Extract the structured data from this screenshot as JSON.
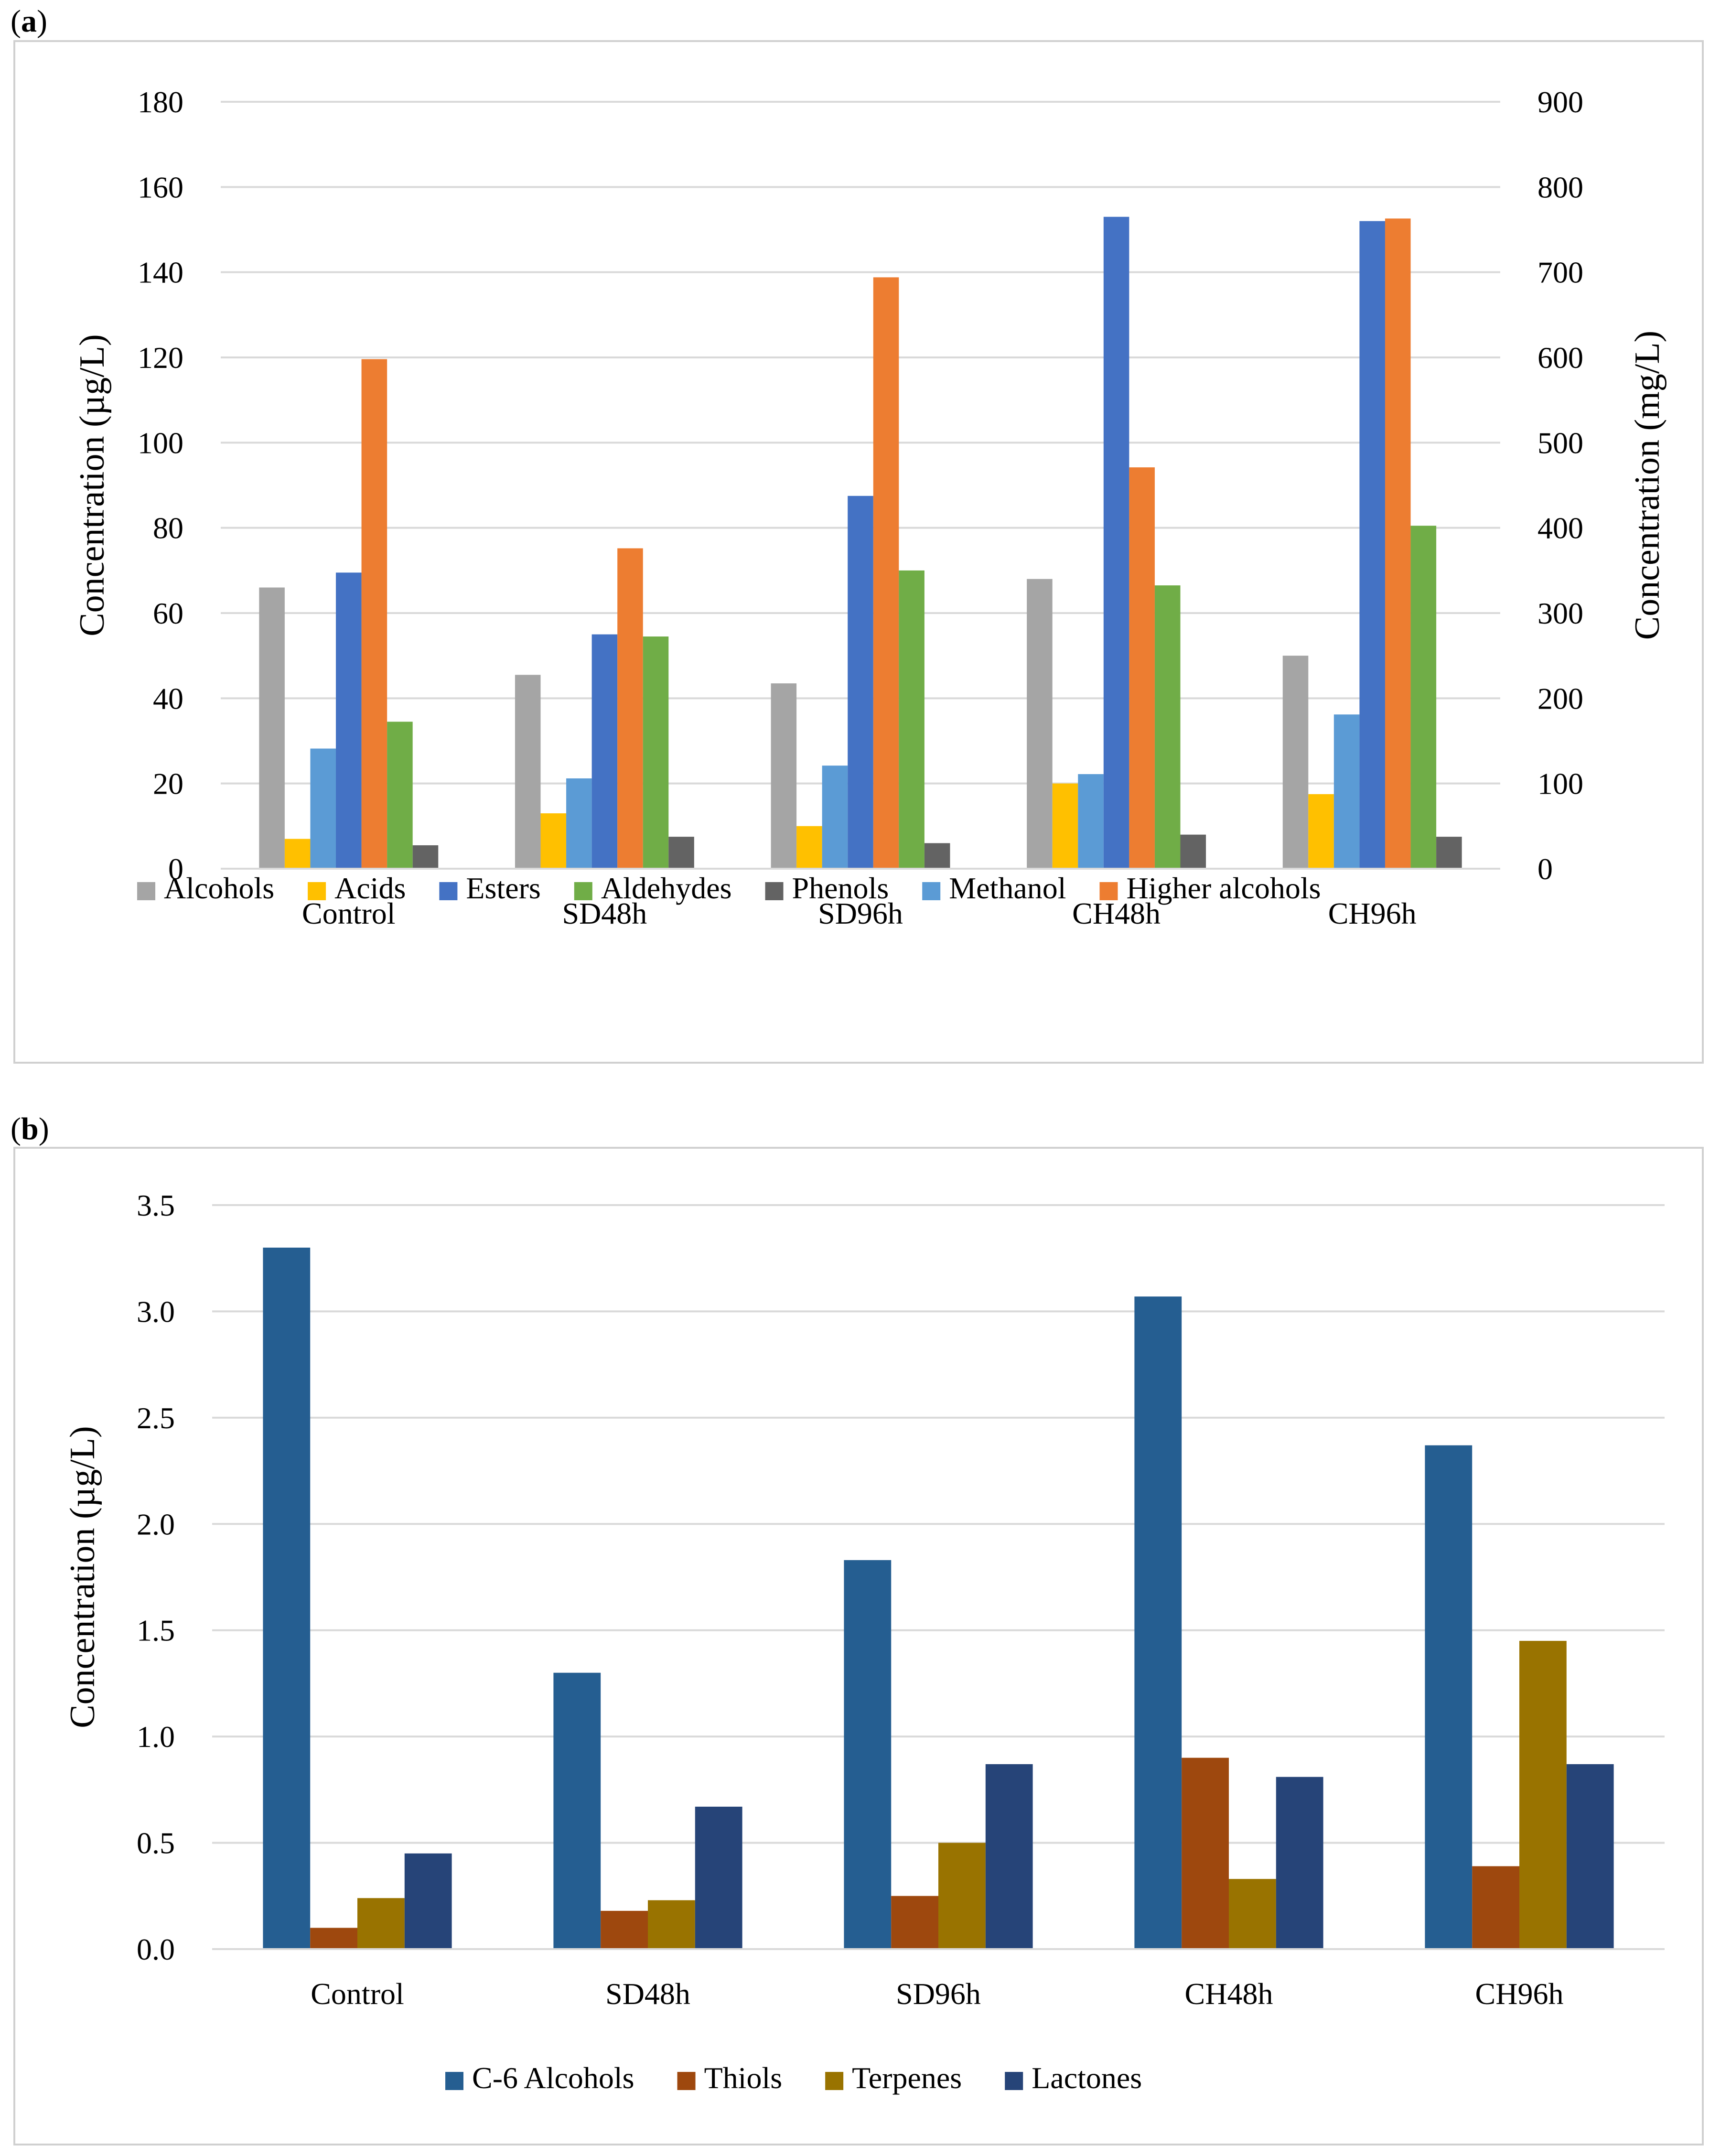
{
  "figure": {
    "panel_a_label": "a",
    "panel_b_label": "b"
  },
  "chart_data": [
    {
      "type": "bar",
      "panel": "a",
      "categories": [
        "Control",
        "SD48h",
        "SD96h",
        "CH48h",
        "CH96h"
      ],
      "ylabel": "Concentration (µg/L)",
      "y2label": "Concentration (mg/L)",
      "ylim": [
        0,
        180
      ],
      "y2lim": [
        0,
        900
      ],
      "yticks": [
        "0",
        "20",
        "40",
        "60",
        "80",
        "100",
        "120",
        "140",
        "160",
        "180"
      ],
      "y2ticks": [
        "0",
        "100",
        "200",
        "300",
        "400",
        "500",
        "600",
        "700",
        "800",
        "900"
      ],
      "grid": true,
      "legend_position": "bottom",
      "series": [
        {
          "name": "Alcohols",
          "axis": "left",
          "color": "#a5a5a5",
          "values": [
            66,
            45.5,
            43.5,
            68,
            50
          ]
        },
        {
          "name": "Acids",
          "axis": "left",
          "color": "#ffc000",
          "values": [
            7,
            13,
            10,
            20,
            17.5
          ]
        },
        {
          "name": "Esters",
          "axis": "left",
          "color": "#4472c4",
          "values": [
            69.5,
            55,
            87.5,
            153,
            152
          ]
        },
        {
          "name": "Aldehydes",
          "axis": "left",
          "color": "#70ad47",
          "values": [
            34.5,
            54.5,
            70,
            66.5,
            80.5
          ]
        },
        {
          "name": "Phenols",
          "axis": "left",
          "color": "#636363",
          "values": [
            5.5,
            7.5,
            6,
            8,
            7.5
          ]
        },
        {
          "name": "Methanol",
          "axis": "right",
          "color": "#5b9bd5",
          "values": [
            141,
            106,
            121,
            111,
            181
          ]
        },
        {
          "name": "Higher alcohols",
          "axis": "right",
          "color": "#ed7d31",
          "values": [
            598,
            376,
            694,
            471,
            763
          ]
        }
      ],
      "draw_order": [
        "Alcohols",
        "Acids",
        "Methanol",
        "Esters",
        "Higher alcohols",
        "Aldehydes",
        "Phenols"
      ]
    },
    {
      "type": "bar",
      "panel": "b",
      "categories": [
        "Control",
        "SD48h",
        "SD96h",
        "CH48h",
        "CH96h"
      ],
      "ylabel": "Concentration (µg/L)",
      "ylim": [
        0,
        3.5
      ],
      "yticks": [
        "0.0",
        "0.5",
        "1.0",
        "1.5",
        "2.0",
        "2.5",
        "3.0",
        "3.5"
      ],
      "grid": true,
      "legend_position": "bottom",
      "series": [
        {
          "name": "C-6 Alcohols",
          "color": "#255e91",
          "values": [
            3.3,
            1.3,
            1.83,
            3.07,
            2.37
          ]
        },
        {
          "name": "Thiols",
          "color": "#9e480e",
          "values": [
            0.1,
            0.18,
            0.25,
            0.9,
            0.39
          ]
        },
        {
          "name": "Terpenes",
          "color": "#997300",
          "values": [
            0.24,
            0.23,
            0.5,
            0.33,
            1.45
          ]
        },
        {
          "name": "Lactones",
          "color": "#264478",
          "values": [
            0.45,
            0.67,
            0.87,
            0.81,
            0.87
          ]
        }
      ],
      "draw_order": [
        "C-6 Alcohols",
        "Thiols",
        "Terpenes",
        "Lactones"
      ]
    }
  ]
}
